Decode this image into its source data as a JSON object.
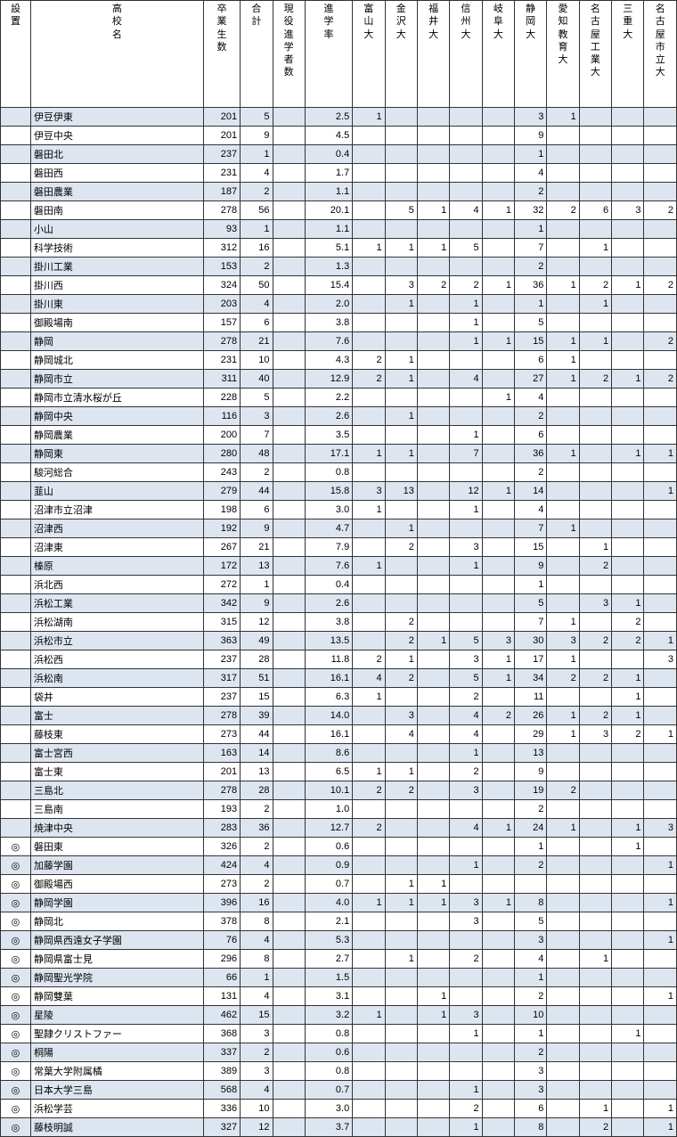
{
  "colors": {
    "row_odd": "#dde6f0",
    "row_even": "#ffffff",
    "border": "#333333",
    "text": "#000000"
  },
  "table": {
    "headers": [
      "設置",
      "高校名",
      "卒業生数",
      "合計",
      "現役進学者数",
      "進学率",
      "富山大",
      "金沢大",
      "福井大",
      "信州大",
      "岐阜大",
      "静岡大",
      "愛知教育大",
      "名古屋工業大",
      "三重大",
      "名古屋市立大"
    ],
    "rows": [
      {
        "marker": "",
        "name": "伊豆伊東",
        "grads": "201",
        "total": "5",
        "rate": "2.5",
        "u": [
          "1",
          "",
          "",
          "",
          "",
          "3",
          "1",
          "",
          "",
          ""
        ]
      },
      {
        "marker": "",
        "name": "伊豆中央",
        "grads": "201",
        "total": "9",
        "rate": "4.5",
        "u": [
          "",
          "",
          "",
          "",
          "",
          "9",
          "",
          "",
          "",
          ""
        ]
      },
      {
        "marker": "",
        "name": "磐田北",
        "grads": "237",
        "total": "1",
        "rate": "0.4",
        "u": [
          "",
          "",
          "",
          "",
          "",
          "1",
          "",
          "",
          "",
          ""
        ]
      },
      {
        "marker": "",
        "name": "磐田西",
        "grads": "231",
        "total": "4",
        "rate": "1.7",
        "u": [
          "",
          "",
          "",
          "",
          "",
          "4",
          "",
          "",
          "",
          ""
        ]
      },
      {
        "marker": "",
        "name": "磐田農業",
        "grads": "187",
        "total": "2",
        "rate": "1.1",
        "u": [
          "",
          "",
          "",
          "",
          "",
          "2",
          "",
          "",
          "",
          ""
        ]
      },
      {
        "marker": "",
        "name": "磐田南",
        "grads": "278",
        "total": "56",
        "rate": "20.1",
        "u": [
          "",
          "5",
          "1",
          "4",
          "1",
          "32",
          "2",
          "6",
          "3",
          "2"
        ]
      },
      {
        "marker": "",
        "name": "小山",
        "grads": "93",
        "total": "1",
        "rate": "1.1",
        "u": [
          "",
          "",
          "",
          "",
          "",
          "1",
          "",
          "",
          "",
          ""
        ]
      },
      {
        "marker": "",
        "name": "科学技術",
        "grads": "312",
        "total": "16",
        "rate": "5.1",
        "u": [
          "1",
          "1",
          "1",
          "5",
          "",
          "7",
          "",
          "1",
          "",
          ""
        ]
      },
      {
        "marker": "",
        "name": "掛川工業",
        "grads": "153",
        "total": "2",
        "rate": "1.3",
        "u": [
          "",
          "",
          "",
          "",
          "",
          "2",
          "",
          "",
          "",
          ""
        ]
      },
      {
        "marker": "",
        "name": "掛川西",
        "grads": "324",
        "total": "50",
        "rate": "15.4",
        "u": [
          "",
          "3",
          "2",
          "2",
          "1",
          "36",
          "1",
          "2",
          "1",
          "2"
        ]
      },
      {
        "marker": "",
        "name": "掛川東",
        "grads": "203",
        "total": "4",
        "rate": "2.0",
        "u": [
          "",
          "1",
          "",
          "1",
          "",
          "1",
          "",
          "1",
          "",
          ""
        ]
      },
      {
        "marker": "",
        "name": "御殿場南",
        "grads": "157",
        "total": "6",
        "rate": "3.8",
        "u": [
          "",
          "",
          "",
          "1",
          "",
          "5",
          "",
          "",
          "",
          ""
        ]
      },
      {
        "marker": "",
        "name": "静岡",
        "grads": "278",
        "total": "21",
        "rate": "7.6",
        "u": [
          "",
          "",
          "",
          "1",
          "1",
          "15",
          "1",
          "1",
          "",
          "2"
        ]
      },
      {
        "marker": "",
        "name": "静岡城北",
        "grads": "231",
        "total": "10",
        "rate": "4.3",
        "u": [
          "2",
          "1",
          "",
          "",
          "",
          "6",
          "1",
          "",
          "",
          ""
        ]
      },
      {
        "marker": "",
        "name": "静岡市立",
        "grads": "311",
        "total": "40",
        "rate": "12.9",
        "u": [
          "2",
          "1",
          "",
          "4",
          "",
          "27",
          "1",
          "2",
          "1",
          "2"
        ]
      },
      {
        "marker": "",
        "name": "静岡市立清水桜が丘",
        "grads": "228",
        "total": "5",
        "rate": "2.2",
        "u": [
          "",
          "",
          "",
          "",
          "1",
          "4",
          "",
          "",
          "",
          ""
        ]
      },
      {
        "marker": "",
        "name": "静岡中央",
        "grads": "116",
        "total": "3",
        "rate": "2.6",
        "u": [
          "",
          "1",
          "",
          "",
          "",
          "2",
          "",
          "",
          "",
          ""
        ]
      },
      {
        "marker": "",
        "name": "静岡農業",
        "grads": "200",
        "total": "7",
        "rate": "3.5",
        "u": [
          "",
          "",
          "",
          "1",
          "",
          "6",
          "",
          "",
          "",
          ""
        ]
      },
      {
        "marker": "",
        "name": "静岡東",
        "grads": "280",
        "total": "48",
        "rate": "17.1",
        "u": [
          "1",
          "1",
          "",
          "7",
          "",
          "36",
          "1",
          "",
          "1",
          "1"
        ]
      },
      {
        "marker": "",
        "name": "駿河総合",
        "grads": "243",
        "total": "2",
        "rate": "0.8",
        "u": [
          "",
          "",
          "",
          "",
          "",
          "2",
          "",
          "",
          "",
          ""
        ]
      },
      {
        "marker": "",
        "name": "韮山",
        "grads": "279",
        "total": "44",
        "rate": "15.8",
        "u": [
          "3",
          "13",
          "",
          "12",
          "1",
          "14",
          "",
          "",
          "",
          "1"
        ]
      },
      {
        "marker": "",
        "name": "沼津市立沼津",
        "grads": "198",
        "total": "6",
        "rate": "3.0",
        "u": [
          "1",
          "",
          "",
          "1",
          "",
          "4",
          "",
          "",
          "",
          ""
        ]
      },
      {
        "marker": "",
        "name": "沼津西",
        "grads": "192",
        "total": "9",
        "rate": "4.7",
        "u": [
          "",
          "1",
          "",
          "",
          "",
          "7",
          "1",
          "",
          "",
          ""
        ]
      },
      {
        "marker": "",
        "name": "沼津東",
        "grads": "267",
        "total": "21",
        "rate": "7.9",
        "u": [
          "",
          "2",
          "",
          "3",
          "",
          "15",
          "",
          "1",
          "",
          ""
        ]
      },
      {
        "marker": "",
        "name": "榛原",
        "grads": "172",
        "total": "13",
        "rate": "7.6",
        "u": [
          "1",
          "",
          "",
          "1",
          "",
          "9",
          "",
          "2",
          "",
          ""
        ]
      },
      {
        "marker": "",
        "name": "浜北西",
        "grads": "272",
        "total": "1",
        "rate": "0.4",
        "u": [
          "",
          "",
          "",
          "",
          "",
          "1",
          "",
          "",
          "",
          ""
        ]
      },
      {
        "marker": "",
        "name": "浜松工業",
        "grads": "342",
        "total": "9",
        "rate": "2.6",
        "u": [
          "",
          "",
          "",
          "",
          "",
          "5",
          "",
          "3",
          "1",
          ""
        ]
      },
      {
        "marker": "",
        "name": "浜松湖南",
        "grads": "315",
        "total": "12",
        "rate": "3.8",
        "u": [
          "",
          "2",
          "",
          "",
          "",
          "7",
          "1",
          "",
          "2",
          ""
        ]
      },
      {
        "marker": "",
        "name": "浜松市立",
        "grads": "363",
        "total": "49",
        "rate": "13.5",
        "u": [
          "",
          "2",
          "1",
          "5",
          "3",
          "30",
          "3",
          "2",
          "2",
          "1"
        ]
      },
      {
        "marker": "",
        "name": "浜松西",
        "grads": "237",
        "total": "28",
        "rate": "11.8",
        "u": [
          "2",
          "1",
          "",
          "3",
          "1",
          "17",
          "1",
          "",
          "",
          "3"
        ]
      },
      {
        "marker": "",
        "name": "浜松南",
        "grads": "317",
        "total": "51",
        "rate": "16.1",
        "u": [
          "4",
          "2",
          "",
          "5",
          "1",
          "34",
          "2",
          "2",
          "1",
          ""
        ]
      },
      {
        "marker": "",
        "name": "袋井",
        "grads": "237",
        "total": "15",
        "rate": "6.3",
        "u": [
          "1",
          "",
          "",
          "2",
          "",
          "11",
          "",
          "",
          "1",
          ""
        ]
      },
      {
        "marker": "",
        "name": "富士",
        "grads": "278",
        "total": "39",
        "rate": "14.0",
        "u": [
          "",
          "3",
          "",
          "4",
          "2",
          "26",
          "1",
          "2",
          "1",
          ""
        ]
      },
      {
        "marker": "",
        "name": "藤枝東",
        "grads": "273",
        "total": "44",
        "rate": "16.1",
        "u": [
          "",
          "4",
          "",
          "4",
          "",
          "29",
          "1",
          "3",
          "2",
          "1"
        ]
      },
      {
        "marker": "",
        "name": "富士宮西",
        "grads": "163",
        "total": "14",
        "rate": "8.6",
        "u": [
          "",
          "",
          "",
          "1",
          "",
          "13",
          "",
          "",
          "",
          ""
        ]
      },
      {
        "marker": "",
        "name": "富士東",
        "grads": "201",
        "total": "13",
        "rate": "6.5",
        "u": [
          "1",
          "1",
          "",
          "2",
          "",
          "9",
          "",
          "",
          "",
          ""
        ]
      },
      {
        "marker": "",
        "name": "三島北",
        "grads": "278",
        "total": "28",
        "rate": "10.1",
        "u": [
          "2",
          "2",
          "",
          "3",
          "",
          "19",
          "2",
          "",
          "",
          ""
        ]
      },
      {
        "marker": "",
        "name": "三島南",
        "grads": "193",
        "total": "2",
        "rate": "1.0",
        "u": [
          "",
          "",
          "",
          "",
          "",
          "2",
          "",
          "",
          "",
          ""
        ]
      },
      {
        "marker": "",
        "name": "焼津中央",
        "grads": "283",
        "total": "36",
        "rate": "12.7",
        "u": [
          "2",
          "",
          "",
          "4",
          "1",
          "24",
          "1",
          "",
          "1",
          "3"
        ]
      },
      {
        "marker": "◎",
        "name": "磐田東",
        "grads": "326",
        "total": "2",
        "rate": "0.6",
        "u": [
          "",
          "",
          "",
          "",
          "",
          "1",
          "",
          "",
          "1",
          ""
        ]
      },
      {
        "marker": "◎",
        "name": "加藤学園",
        "grads": "424",
        "total": "4",
        "rate": "0.9",
        "u": [
          "",
          "",
          "",
          "1",
          "",
          "2",
          "",
          "",
          "",
          "1"
        ]
      },
      {
        "marker": "◎",
        "name": "御殿場西",
        "grads": "273",
        "total": "2",
        "rate": "0.7",
        "u": [
          "",
          "1",
          "1",
          "",
          "",
          "",
          "",
          "",
          "",
          ""
        ]
      },
      {
        "marker": "◎",
        "name": "静岡学園",
        "grads": "396",
        "total": "16",
        "rate": "4.0",
        "u": [
          "1",
          "1",
          "1",
          "3",
          "1",
          "8",
          "",
          "",
          "",
          "1"
        ]
      },
      {
        "marker": "◎",
        "name": "静岡北",
        "grads": "378",
        "total": "8",
        "rate": "2.1",
        "u": [
          "",
          "",
          "",
          "3",
          "",
          "5",
          "",
          "",
          "",
          ""
        ]
      },
      {
        "marker": "◎",
        "name": "静岡県西遠女子学園",
        "grads": "76",
        "total": "4",
        "rate": "5.3",
        "u": [
          "",
          "",
          "",
          "",
          "",
          "3",
          "",
          "",
          "",
          "1"
        ]
      },
      {
        "marker": "◎",
        "name": "静岡県富士見",
        "grads": "296",
        "total": "8",
        "rate": "2.7",
        "u": [
          "",
          "1",
          "",
          "2",
          "",
          "4",
          "",
          "1",
          "",
          ""
        ]
      },
      {
        "marker": "◎",
        "name": "静岡聖光学院",
        "grads": "66",
        "total": "1",
        "rate": "1.5",
        "u": [
          "",
          "",
          "",
          "",
          "",
          "1",
          "",
          "",
          "",
          ""
        ]
      },
      {
        "marker": "◎",
        "name": "静岡雙葉",
        "grads": "131",
        "total": "4",
        "rate": "3.1",
        "u": [
          "",
          "",
          "1",
          "",
          "",
          "2",
          "",
          "",
          "",
          "1"
        ]
      },
      {
        "marker": "◎",
        "name": "星陵",
        "grads": "462",
        "total": "15",
        "rate": "3.2",
        "u": [
          "1",
          "",
          "1",
          "3",
          "",
          "10",
          "",
          "",
          "",
          ""
        ]
      },
      {
        "marker": "◎",
        "name": "聖隷クリストファー",
        "grads": "368",
        "total": "3",
        "rate": "0.8",
        "u": [
          "",
          "",
          "",
          "1",
          "",
          "1",
          "",
          "",
          "1",
          ""
        ]
      },
      {
        "marker": "◎",
        "name": "桐陽",
        "grads": "337",
        "total": "2",
        "rate": "0.6",
        "u": [
          "",
          "",
          "",
          "",
          "",
          "2",
          "",
          "",
          "",
          ""
        ]
      },
      {
        "marker": "◎",
        "name": "常葉大学附属橘",
        "grads": "389",
        "total": "3",
        "rate": "0.8",
        "u": [
          "",
          "",
          "",
          "",
          "",
          "3",
          "",
          "",
          "",
          ""
        ]
      },
      {
        "marker": "◎",
        "name": "日本大学三島",
        "grads": "568",
        "total": "4",
        "rate": "0.7",
        "u": [
          "",
          "",
          "",
          "1",
          "",
          "3",
          "",
          "",
          "",
          ""
        ]
      },
      {
        "marker": "◎",
        "name": "浜松学芸",
        "grads": "336",
        "total": "10",
        "rate": "3.0",
        "u": [
          "",
          "",
          "",
          "2",
          "",
          "6",
          "",
          "1",
          "",
          "1"
        ]
      },
      {
        "marker": "◎",
        "name": "藤枝明誠",
        "grads": "327",
        "total": "12",
        "rate": "3.7",
        "u": [
          "",
          "",
          "",
          "1",
          "",
          "8",
          "",
          "2",
          "",
          "1"
        ]
      }
    ]
  }
}
